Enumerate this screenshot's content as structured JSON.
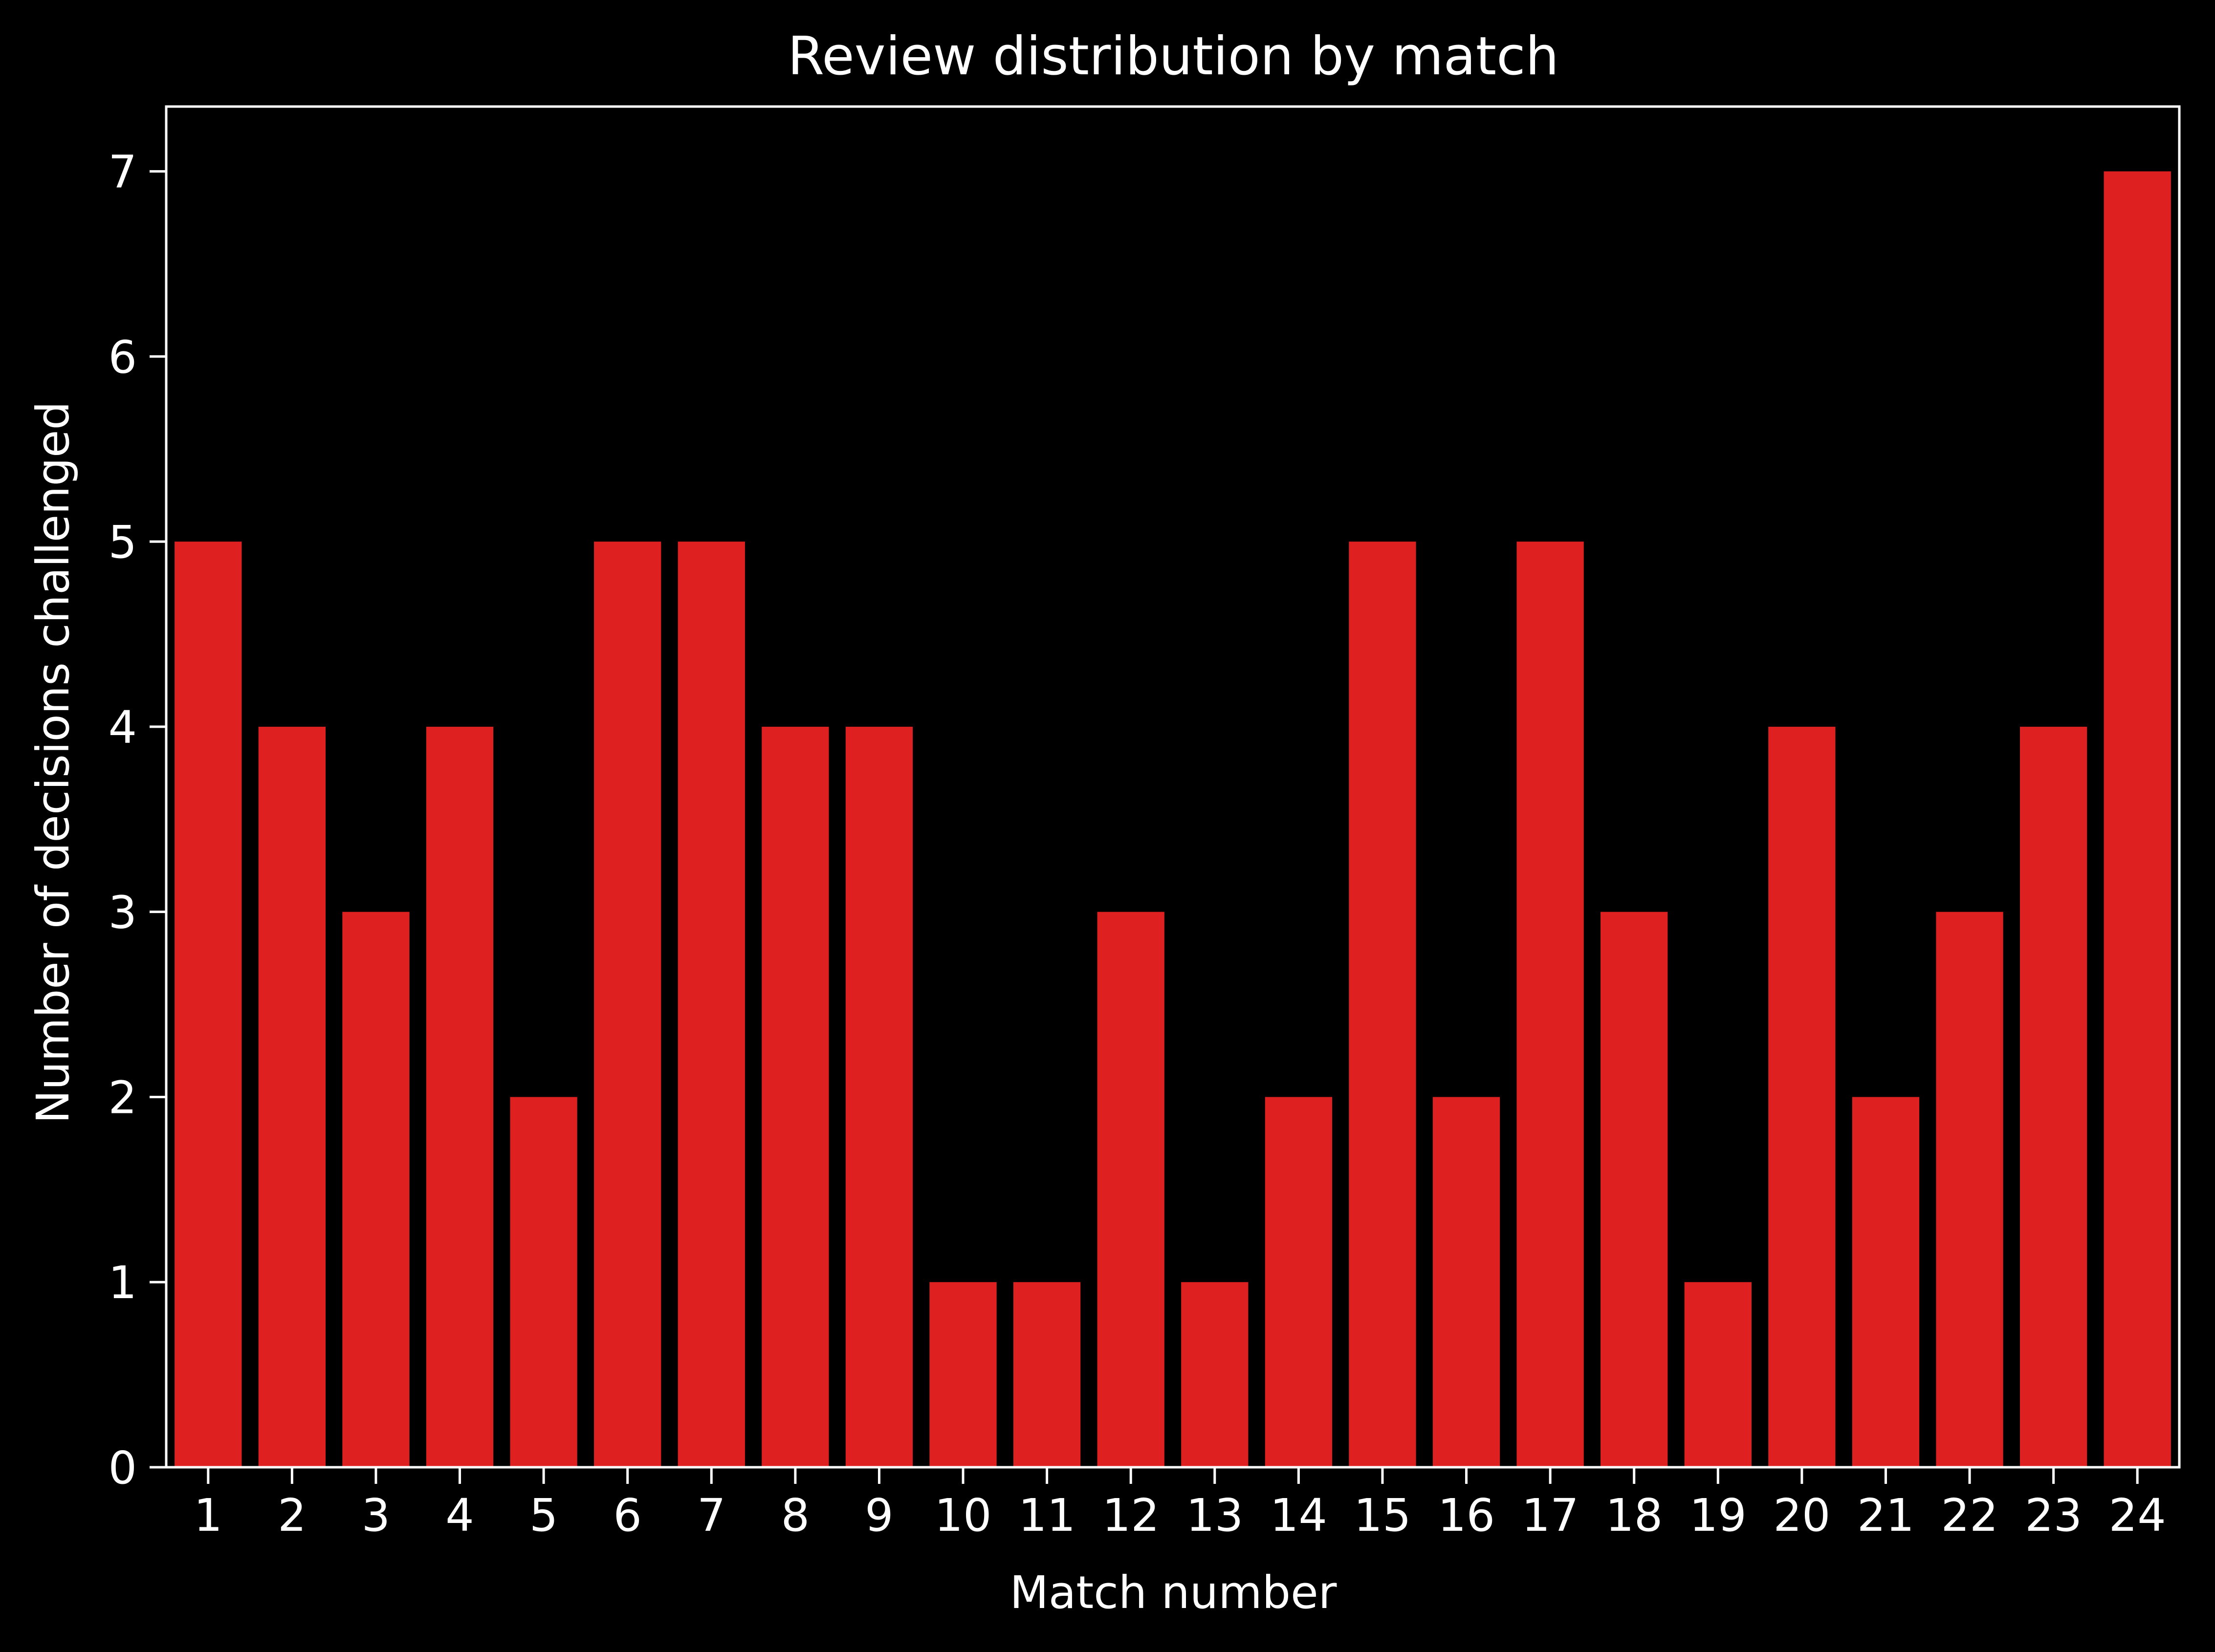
{
  "chart_data": {
    "type": "bar",
    "title": "Review distribution by match",
    "xlabel": "Match number",
    "ylabel": "Number of decisions challenged",
    "categories": [
      "1",
      "2",
      "3",
      "4",
      "5",
      "6",
      "7",
      "8",
      "9",
      "10",
      "11",
      "12",
      "13",
      "14",
      "15",
      "16",
      "17",
      "18",
      "19",
      "20",
      "21",
      "22",
      "23",
      "24"
    ],
    "values": [
      5,
      4,
      3,
      4,
      2,
      5,
      5,
      4,
      4,
      1,
      1,
      3,
      1,
      2,
      5,
      2,
      5,
      3,
      1,
      4,
      2,
      3,
      4,
      7
    ],
    "yticks": [
      0,
      1,
      2,
      3,
      4,
      5,
      6,
      7
    ],
    "ylim": [
      0,
      7.35
    ],
    "grid": false,
    "legend": "none",
    "colors": {
      "background": "#000000",
      "bar": "#df2020",
      "axis": "#ffffff",
      "text": "#ffffff"
    }
  }
}
